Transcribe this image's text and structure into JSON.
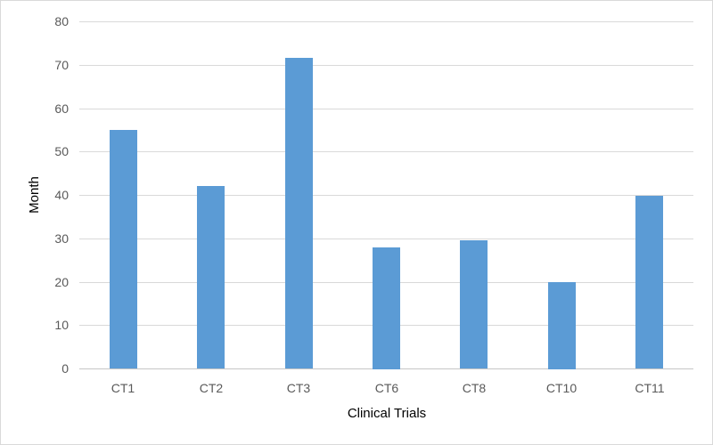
{
  "chart_data": {
    "type": "bar",
    "title": "",
    "categories": [
      "CT1",
      "CT2",
      "CT3",
      "CT6",
      "CT8",
      "CT10",
      "CT11"
    ],
    "values": [
      55,
      42,
      71.5,
      28,
      29.5,
      20,
      39.7
    ],
    "xlabel": "Clinical Trials",
    "ylabel": "Month",
    "ylim": [
      0,
      80
    ],
    "yticks": [
      0,
      10,
      20,
      30,
      40,
      50,
      60,
      70,
      80
    ],
    "grid": true,
    "legend": false,
    "colors": {
      "bar": "#5B9BD5",
      "gridline": "#D9D9D9",
      "axis_line": "#C6C6C6",
      "tick_label": "#595959",
      "axis_title": "#000000",
      "background": "#FFFFFF",
      "frame_border": "#D9D9D9"
    }
  }
}
